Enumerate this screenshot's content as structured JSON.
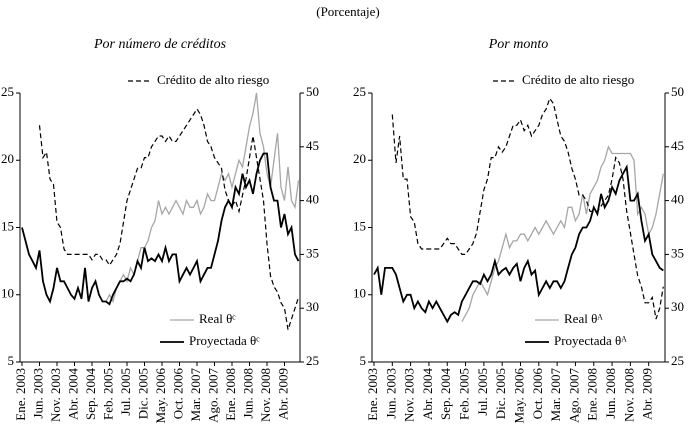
{
  "header": "(Porcentaje)",
  "chart_data": [
    {
      "type": "line",
      "title": "Por número de créditos",
      "categories": [
        "Ene. 2003",
        null,
        null,
        null,
        null,
        "Jun. 2003",
        null,
        null,
        null,
        null,
        "Nov. 2003",
        null,
        null,
        null,
        null,
        "Abr. 2004",
        null,
        null,
        null,
        null,
        "Sep. 2004",
        null,
        null,
        null,
        null,
        "Feb. 2005",
        null,
        null,
        null,
        null,
        "Jul. 2005",
        null,
        null,
        null,
        null,
        "Dic. 2005",
        null,
        null,
        null,
        null,
        "May. 2006",
        null,
        null,
        null,
        null,
        "Oct. 2006",
        null,
        null,
        null,
        null,
        "Mar. 2007",
        null,
        null,
        null,
        null,
        "Ago. 2007",
        null,
        null,
        null,
        null,
        "Ene. 2008",
        null,
        null,
        null,
        null,
        "Jun. 2008",
        null,
        null,
        null,
        null,
        "Nov. 2008",
        null,
        null,
        null,
        null,
        "Abr. 2009",
        null,
        null,
        null,
        null
      ],
      "ylim": [
        5,
        25
      ],
      "yticks": [
        5,
        10,
        15,
        20,
        25
      ],
      "y2lim": [
        25,
        50
      ],
      "y2ticks": [
        25,
        30,
        35,
        40,
        45,
        50
      ],
      "series": [
        {
          "name": "Real θᶜ",
          "color": "#a6a6a6",
          "style": "solid",
          "values": [
            null,
            null,
            null,
            null,
            null,
            null,
            null,
            null,
            null,
            null,
            null,
            null,
            null,
            null,
            null,
            null,
            null,
            null,
            null,
            null,
            null,
            null,
            null,
            null,
            9.5,
            10,
            9.5,
            10.5,
            11,
            11.5,
            11,
            12,
            11.5,
            12.5,
            13.5,
            13.5,
            14,
            15,
            15.5,
            17,
            16,
            16.5,
            16,
            16.5,
            17,
            16.5,
            16,
            17,
            16.5,
            16.5,
            17,
            16,
            16.5,
            17.5,
            17,
            17,
            18,
            19,
            18.5,
            19,
            18,
            19,
            20,
            19.5,
            21,
            22.5,
            23.5,
            25,
            22,
            21,
            19,
            18,
            20,
            22,
            18,
            17,
            19.5,
            17,
            16.5,
            18.5
          ]
        },
        {
          "name": "Proyectada θᶜ",
          "color": "#000000",
          "style": "solid",
          "values": [
            15,
            14,
            13,
            12.5,
            12,
            13.3,
            11,
            10,
            9.5,
            10.5,
            12,
            11,
            11,
            10.5,
            10,
            9.7,
            10.5,
            9.7,
            12,
            9.5,
            10.5,
            11,
            10,
            9.5,
            9.5,
            9.3,
            10,
            10.5,
            11,
            11,
            11.2,
            11,
            11.5,
            12.5,
            12,
            13.5,
            12.5,
            12.7,
            12.5,
            13,
            12.5,
            13.5,
            12.5,
            13,
            13,
            11,
            11.5,
            12,
            11.5,
            12,
            12.5,
            11,
            11.5,
            12,
            12,
            13,
            14,
            15.5,
            16.5,
            17,
            16.5,
            18,
            17.5,
            19,
            18,
            18.5,
            17.5,
            19,
            20,
            20.5,
            20.5,
            18,
            17,
            17,
            15,
            16,
            14.5,
            15,
            13,
            12.5
          ]
        },
        {
          "name": "Crédito de alto riesgo",
          "color": "#000000",
          "style": "dashed",
          "axis": "y2",
          "values": [
            null,
            null,
            null,
            null,
            null,
            47,
            44,
            44.5,
            42,
            41.5,
            38,
            37.5,
            35.5,
            35,
            35,
            35,
            35,
            35,
            35,
            35,
            34.5,
            35,
            35,
            34.5,
            34.5,
            34,
            34.5,
            35,
            36,
            38,
            40,
            41,
            42,
            43,
            43,
            44,
            44,
            45,
            45.5,
            46,
            46,
            45.5,
            46,
            45.5,
            45.5,
            46,
            46.5,
            47,
            47.5,
            48,
            48.5,
            48,
            47,
            45.5,
            45,
            44,
            43.5,
            43,
            41,
            40,
            39.5,
            40,
            39,
            40.5,
            42,
            44,
            46,
            44,
            42,
            40,
            36,
            33,
            32,
            31.5,
            30.5,
            30,
            28,
            29,
            30,
            31
          ]
        }
      ]
    },
    {
      "type": "line",
      "title": "Por monto",
      "categories": [
        "Ene. 2003",
        null,
        null,
        null,
        null,
        "Jun. 2003",
        null,
        null,
        null,
        null,
        "Nov. 2003",
        null,
        null,
        null,
        null,
        "Abr. 2004",
        null,
        null,
        null,
        null,
        "Sep. 2004",
        null,
        null,
        null,
        null,
        "Feb. 2005",
        null,
        null,
        null,
        null,
        "Jul. 2005",
        null,
        null,
        null,
        null,
        "Dic. 2005",
        null,
        null,
        null,
        null,
        "May. 2006",
        null,
        null,
        null,
        null,
        "Oct. 2006",
        null,
        null,
        null,
        null,
        "Mar. 2007",
        null,
        null,
        null,
        null,
        "Ago. 2007",
        null,
        null,
        null,
        null,
        "Ene. 2008",
        null,
        null,
        null,
        null,
        "Jun. 2008",
        null,
        null,
        null,
        null,
        "Nov. 2008",
        null,
        null,
        null,
        null,
        "Abr. 2009",
        null,
        null,
        null,
        null
      ],
      "ylim": [
        5,
        25
      ],
      "yticks": [
        5,
        10,
        15,
        20,
        25
      ],
      "y2lim": [
        25,
        50
      ],
      "y2ticks": [
        25,
        30,
        35,
        40,
        45,
        50
      ],
      "series": [
        {
          "name": "Real θᴬ",
          "color": "#a6a6a6",
          "style": "solid",
          "values": [
            null,
            null,
            null,
            null,
            null,
            null,
            null,
            null,
            null,
            null,
            null,
            null,
            null,
            null,
            null,
            null,
            null,
            null,
            null,
            null,
            null,
            null,
            null,
            null,
            8,
            8.5,
            9,
            10,
            10.5,
            11,
            10.5,
            10,
            11,
            12,
            12.5,
            13.5,
            14.5,
            13.5,
            14,
            14,
            14.5,
            14.5,
            14,
            14.5,
            15,
            14.5,
            15,
            15.5,
            15,
            14.5,
            15,
            15.5,
            15,
            16.5,
            16.5,
            15.5,
            16,
            17.5,
            16,
            17.5,
            18,
            18.5,
            19.5,
            20,
            21,
            20.5,
            20.5,
            20.5,
            20.5,
            20.5,
            20.5,
            20,
            16,
            16.5,
            16,
            14.5,
            15,
            16,
            17.5,
            19
          ]
        },
        {
          "name": "Proyectada θᴬ",
          "color": "#000000",
          "style": "solid",
          "values": [
            11.5,
            12,
            10,
            12,
            12,
            12,
            11.5,
            10.5,
            9.5,
            10,
            10,
            9,
            9.5,
            9,
            8.7,
            9.5,
            9,
            9.5,
            9,
            8.5,
            8,
            8.5,
            8.7,
            8.5,
            9.5,
            10,
            10.5,
            11,
            11,
            10.8,
            11.5,
            11,
            11.5,
            12.5,
            11.5,
            11.8,
            12,
            11.5,
            12,
            12.3,
            11,
            12,
            12.5,
            11.5,
            11.8,
            10,
            10.5,
            11,
            10.5,
            11,
            11,
            10.5,
            11,
            12,
            13,
            13.5,
            14.5,
            15,
            15,
            15.5,
            16.5,
            16,
            17.5,
            16.5,
            17,
            18,
            17.5,
            18.5,
            19,
            19.5,
            17,
            17,
            17.5,
            15.5,
            14,
            14.5,
            13,
            12.5,
            12,
            11.8
          ]
        },
        {
          "name": "Crédito de alto riesgo",
          "color": "#000000",
          "style": "dashed",
          "axis": "y2",
          "values": [
            null,
            null,
            null,
            null,
            null,
            48,
            43.5,
            46,
            42,
            42,
            38.5,
            38,
            36,
            35.5,
            35.5,
            35.5,
            35.5,
            35.5,
            35.5,
            36,
            36.5,
            36,
            36,
            35.5,
            35,
            35,
            35.5,
            36,
            37,
            39,
            41,
            42,
            44,
            44,
            45,
            44.5,
            45,
            46,
            47,
            47,
            47.5,
            46.5,
            47,
            46,
            46.5,
            47,
            48,
            48.5,
            49.5,
            49,
            47.5,
            46,
            45.5,
            44.5,
            43,
            42,
            40.5,
            40.5,
            40,
            39,
            39,
            39,
            39.5,
            40,
            40.5,
            42,
            44,
            43.5,
            42,
            39,
            37,
            35,
            33,
            32,
            30.5,
            30.5,
            31,
            29,
            30,
            32
          ]
        }
      ]
    }
  ]
}
